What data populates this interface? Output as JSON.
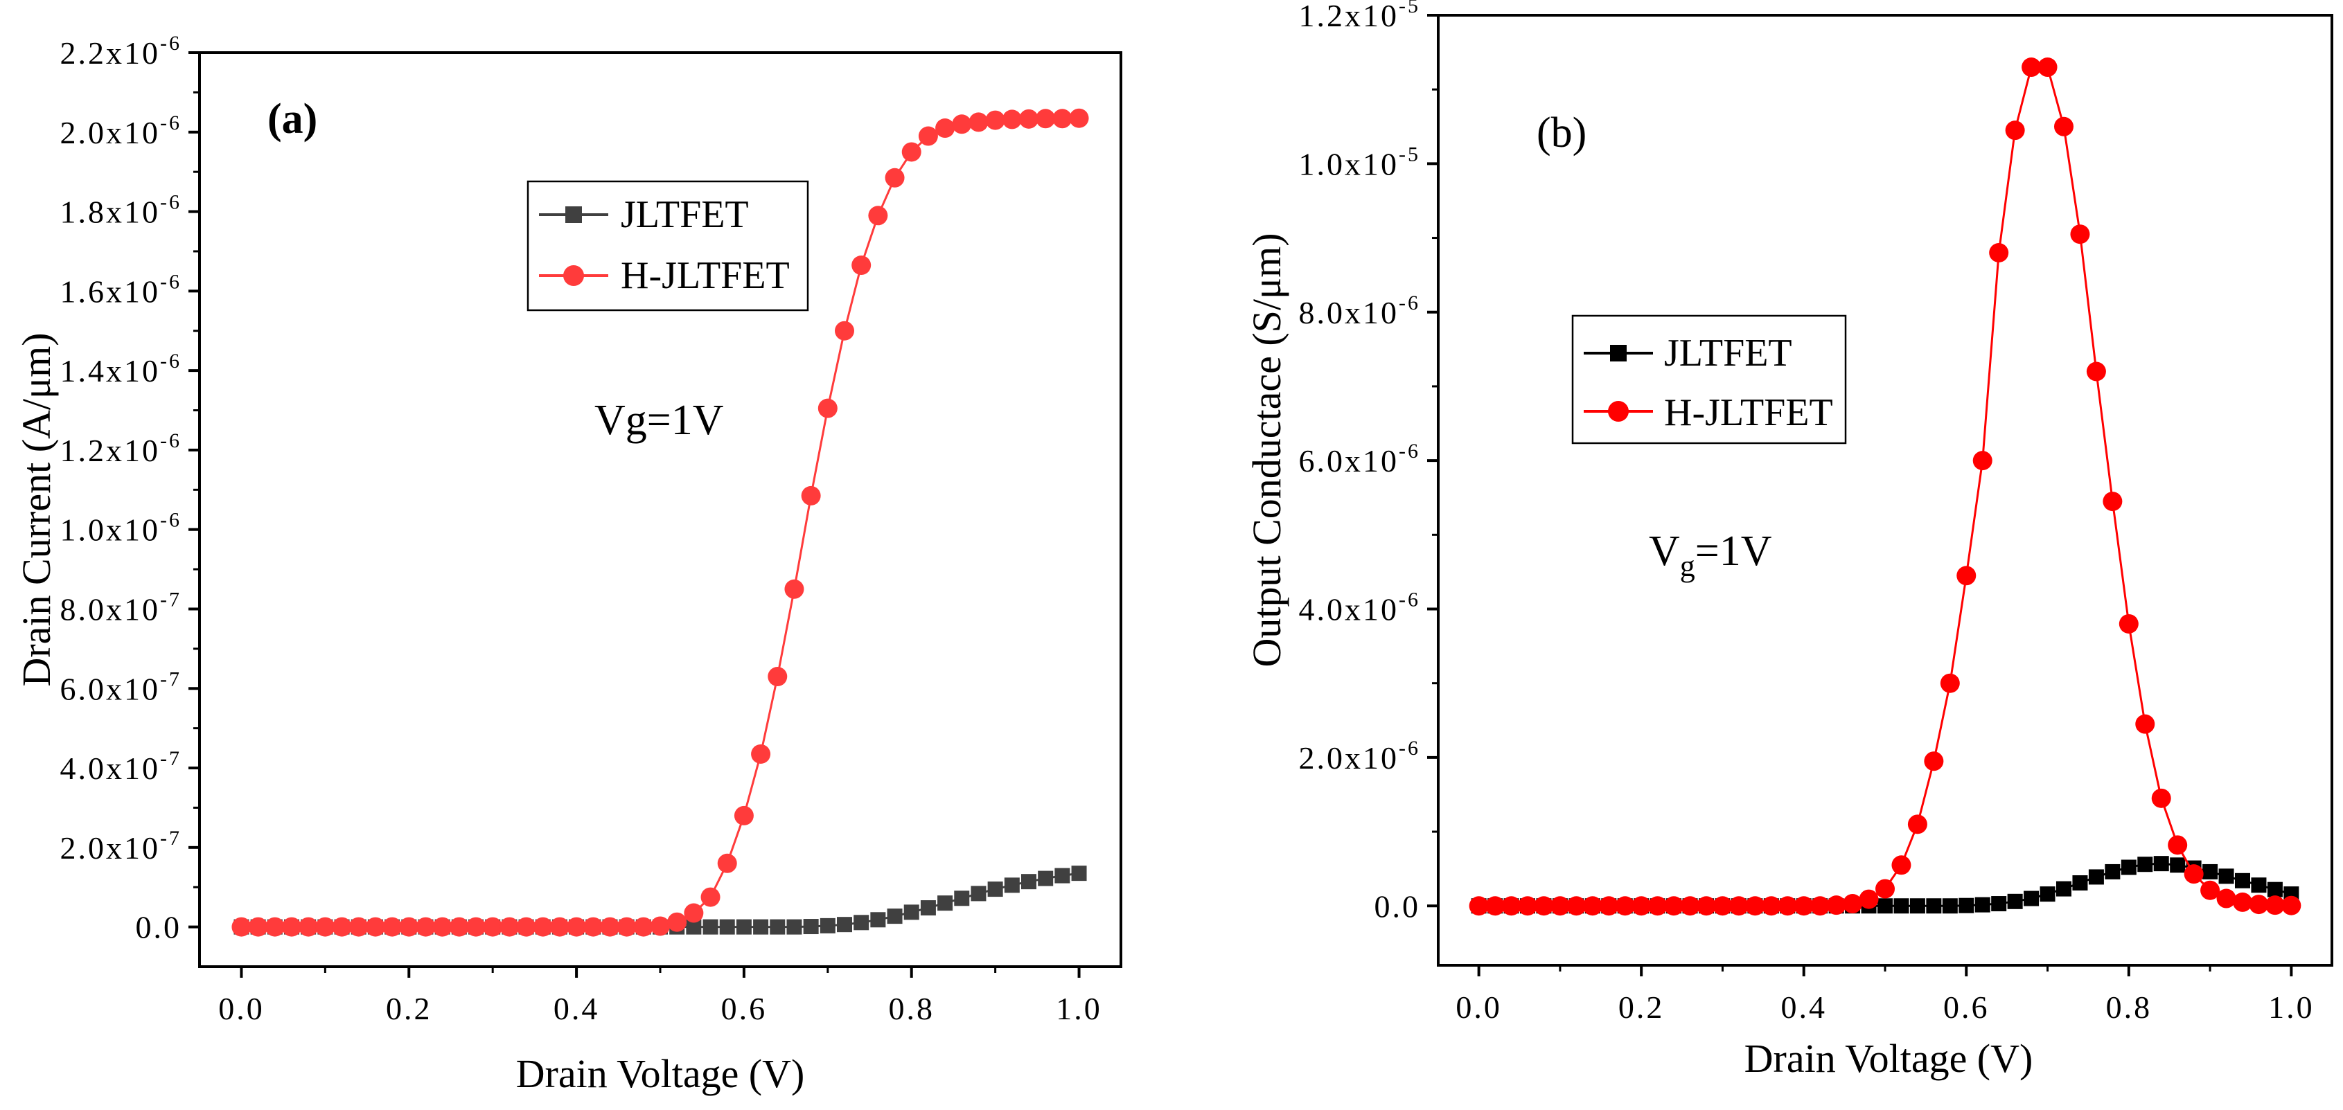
{
  "chart_data": [
    {
      "type": "line",
      "panel_label": "(a)",
      "xlabel": "Drain Voltage (V)",
      "ylabel": "Drain Current (A/μm)",
      "annotation": {
        "main": "Vg=1V"
      },
      "xlim": [
        -0.05,
        1.05
      ],
      "ylim": [
        -1e-07,
        2.2e-06
      ],
      "x_ticks": [
        {
          "value": 0.0,
          "label": "0.0"
        },
        {
          "value": 0.2,
          "label": "0.2"
        },
        {
          "value": 0.4,
          "label": "0.4"
        },
        {
          "value": 0.6,
          "label": "0.6"
        },
        {
          "value": 0.8,
          "label": "0.8"
        },
        {
          "value": 1.0,
          "label": "1.0"
        }
      ],
      "y_ticks": [
        {
          "value": 0,
          "label": "0.0"
        },
        {
          "value": 2e-07,
          "mant": "2.0x10",
          "exp": "-7"
        },
        {
          "value": 4e-07,
          "mant": "4.0x10",
          "exp": "-7"
        },
        {
          "value": 6e-07,
          "mant": "6.0x10",
          "exp": "-7"
        },
        {
          "value": 8e-07,
          "mant": "8.0x10",
          "exp": "-7"
        },
        {
          "value": 1e-06,
          "mant": "1.0x10",
          "exp": "-6"
        },
        {
          "value": 1.2e-06,
          "mant": "1.2x10",
          "exp": "-6"
        },
        {
          "value": 1.4e-06,
          "mant": "1.4x10",
          "exp": "-6"
        },
        {
          "value": 1.6e-06,
          "mant": "1.6x10",
          "exp": "-6"
        },
        {
          "value": 1.8e-06,
          "mant": "1.8x10",
          "exp": "-6"
        },
        {
          "value": 2e-06,
          "mant": "2.0x10",
          "exp": "-6"
        },
        {
          "value": 2.2e-06,
          "mant": "2.2x10",
          "exp": "-6"
        }
      ],
      "legend_position": "top-center",
      "series": [
        {
          "name": "JLTFET",
          "color": "#404040",
          "marker": "square",
          "x": [
            0,
            0.02,
            0.04,
            0.06,
            0.08,
            0.1,
            0.12,
            0.14,
            0.16,
            0.18,
            0.2,
            0.22,
            0.24,
            0.26,
            0.28,
            0.3,
            0.32,
            0.34,
            0.36,
            0.38,
            0.4,
            0.42,
            0.44,
            0.46,
            0.48,
            0.5,
            0.52,
            0.54,
            0.56,
            0.58,
            0.6,
            0.62,
            0.64,
            0.66,
            0.68,
            0.7,
            0.72,
            0.74,
            0.76,
            0.78,
            0.8,
            0.82,
            0.84,
            0.86,
            0.88,
            0.9,
            0.92,
            0.94,
            0.96,
            0.98,
            1.0
          ],
          "y": [
            0,
            0,
            0,
            0,
            0,
            0,
            0,
            0,
            0,
            0,
            0,
            0,
            0,
            0,
            0,
            0,
            0,
            0,
            0,
            0,
            0,
            0,
            0,
            0,
            0,
            0,
            0,
            0,
            0,
            0,
            0,
            0,
            0,
            0,
            1e-09,
            3e-09,
            6e-09,
            1.1e-08,
            1.8e-08,
            2.7e-08,
            3.7e-08,
            4.8e-08,
            6e-08,
            7.2e-08,
            8.4e-08,
            9.5e-08,
            1.05e-07,
            1.14e-07,
            1.22e-07,
            1.29e-07,
            1.35e-07
          ]
        },
        {
          "name": "H-JLTFET",
          "color": "#ff3b3b",
          "marker": "circle",
          "x": [
            0,
            0.02,
            0.04,
            0.06,
            0.08,
            0.1,
            0.12,
            0.14,
            0.16,
            0.18,
            0.2,
            0.22,
            0.24,
            0.26,
            0.28,
            0.3,
            0.32,
            0.34,
            0.36,
            0.38,
            0.4,
            0.42,
            0.44,
            0.46,
            0.48,
            0.5,
            0.52,
            0.54,
            0.56,
            0.58,
            0.6,
            0.62,
            0.64,
            0.66,
            0.68,
            0.7,
            0.72,
            0.74,
            0.76,
            0.78,
            0.8,
            0.82,
            0.84,
            0.86,
            0.88,
            0.9,
            0.92,
            0.94,
            0.96,
            0.98,
            1.0
          ],
          "y": [
            0,
            0,
            0,
            0,
            0,
            0,
            0,
            0,
            0,
            0,
            0,
            0,
            0,
            0,
            0,
            0,
            0,
            0,
            0,
            0,
            0,
            0,
            0,
            0,
            0,
            2e-09,
            1.2e-08,
            3.5e-08,
            7.5e-08,
            1.6e-07,
            2.8e-07,
            4.35e-07,
            6.3e-07,
            8.5e-07,
            1.085e-06,
            1.305e-06,
            1.5e-06,
            1.665e-06,
            1.79e-06,
            1.885e-06,
            1.95e-06,
            1.99e-06,
            2.01e-06,
            2.02e-06,
            2.025e-06,
            2.03e-06,
            2.032e-06,
            2.033e-06,
            2.034e-06,
            2.034e-06,
            2.035e-06
          ]
        }
      ]
    },
    {
      "type": "line",
      "panel_label": "(b)",
      "xlabel": "Drain Voltage (V)",
      "ylabel": "Output Conductace (S/μm)",
      "annotation": {
        "main": "V",
        "sub": "g",
        "rest": "=1V"
      },
      "xlim": [
        -0.05,
        1.05
      ],
      "ylim": [
        -8e-07,
        1.2e-05
      ],
      "x_ticks": [
        {
          "value": 0.0,
          "label": "0.0"
        },
        {
          "value": 0.2,
          "label": "0.2"
        },
        {
          "value": 0.4,
          "label": "0.4"
        },
        {
          "value": 0.6,
          "label": "0.6"
        },
        {
          "value": 0.8,
          "label": "0.8"
        },
        {
          "value": 1.0,
          "label": "1.0"
        }
      ],
      "y_ticks": [
        {
          "value": 0,
          "label": "0.0"
        },
        {
          "value": 2e-06,
          "mant": "2.0x10",
          "exp": "-6"
        },
        {
          "value": 4e-06,
          "mant": "4.0x10",
          "exp": "-6"
        },
        {
          "value": 6e-06,
          "mant": "6.0x10",
          "exp": "-6"
        },
        {
          "value": 8e-06,
          "mant": "8.0x10",
          "exp": "-6"
        },
        {
          "value": 1e-05,
          "mant": "1.0x10",
          "exp": "-5"
        },
        {
          "value": 1.2e-05,
          "mant": "1.2x10",
          "exp": "-5"
        }
      ],
      "legend_position": "middle-left",
      "series": [
        {
          "name": "JLTFET",
          "color": "#000000",
          "marker": "square",
          "x": [
            0,
            0.02,
            0.04,
            0.06,
            0.08,
            0.1,
            0.12,
            0.14,
            0.16,
            0.18,
            0.2,
            0.22,
            0.24,
            0.26,
            0.28,
            0.3,
            0.32,
            0.34,
            0.36,
            0.38,
            0.4,
            0.42,
            0.44,
            0.46,
            0.48,
            0.5,
            0.52,
            0.54,
            0.56,
            0.58,
            0.6,
            0.62,
            0.64,
            0.66,
            0.68,
            0.7,
            0.72,
            0.74,
            0.76,
            0.78,
            0.8,
            0.82,
            0.84,
            0.86,
            0.88,
            0.9,
            0.92,
            0.94,
            0.96,
            0.98,
            1.0
          ],
          "y": [
            0,
            0,
            0,
            0,
            0,
            0,
            0,
            0,
            0,
            0,
            0,
            0,
            0,
            0,
            0,
            0,
            0,
            0,
            0,
            0,
            0,
            0,
            0,
            0,
            0,
            0,
            0,
            0,
            0,
            0,
            5e-09,
            1.5e-08,
            3e-08,
            6e-08,
            1e-07,
            1.6e-07,
            2.3e-07,
            3.1e-07,
            3.9e-07,
            4.6e-07,
            5.2e-07,
            5.6e-07,
            5.7e-07,
            5.5e-07,
            5.1e-07,
            4.6e-07,
            4e-07,
            3.4e-07,
            2.8e-07,
            2.2e-07,
            1.6e-07
          ]
        },
        {
          "name": "H-JLTFET",
          "color": "#ff0000",
          "marker": "circle",
          "x": [
            0,
            0.02,
            0.04,
            0.06,
            0.08,
            0.1,
            0.12,
            0.14,
            0.16,
            0.18,
            0.2,
            0.22,
            0.24,
            0.26,
            0.28,
            0.3,
            0.32,
            0.34,
            0.36,
            0.38,
            0.4,
            0.42,
            0.44,
            0.46,
            0.48,
            0.5,
            0.52,
            0.54,
            0.56,
            0.58,
            0.6,
            0.62,
            0.64,
            0.66,
            0.68,
            0.7,
            0.72,
            0.74,
            0.76,
            0.78,
            0.8,
            0.82,
            0.84,
            0.86,
            0.88,
            0.9,
            0.92,
            0.94,
            0.96,
            0.98,
            1.0
          ],
          "y": [
            0,
            0,
            0,
            0,
            0,
            0,
            0,
            0,
            0,
            0,
            0,
            0,
            0,
            0,
            0,
            0,
            0,
            0,
            0,
            0,
            0,
            0,
            1e-08,
            3e-08,
            9e-08,
            2.3e-07,
            5.5e-07,
            1.1e-06,
            1.95e-06,
            3e-06,
            4.45e-06,
            6e-06,
            8.8e-06,
            1.045e-05,
            1.13e-05,
            1.13e-05,
            1.05e-05,
            9.05e-06,
            7.2e-06,
            5.45e-06,
            3.8e-06,
            2.45e-06,
            1.45e-06,
            8.2e-07,
            4.3e-07,
            2.1e-07,
            1e-07,
            5e-08,
            2e-08,
            1e-08,
            5e-09
          ]
        }
      ]
    }
  ]
}
